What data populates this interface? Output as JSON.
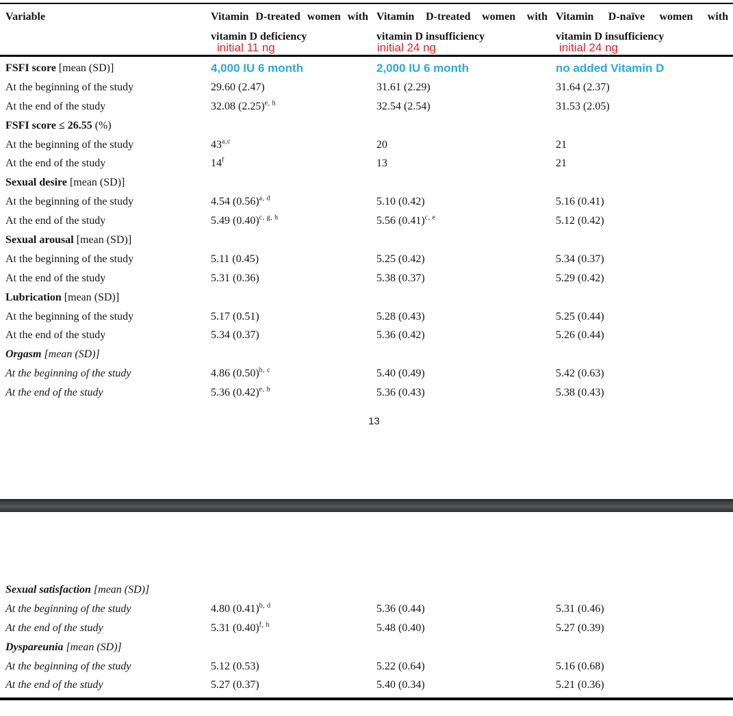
{
  "colors": {
    "annotation_red": "#e82222",
    "annotation_cyan": "#29a9e1",
    "page_separator_bar": "#44484b",
    "table_rule": "#000000"
  },
  "page_number": "13",
  "header": {
    "variable_label": "Variable",
    "columns": [
      {
        "line1": "Vitamin D-treated women with",
        "line2": "vitamin D deficiency",
        "initial_note": "initial 11 ng",
        "dose_note": "4,000 IU 6 month"
      },
      {
        "line1": "Vitamin D-treated women with",
        "line2": "vitamin D insufficiency",
        "initial_note": "initial 24 ng",
        "dose_note": "2,000 IU 6 month"
      },
      {
        "line1": "Vitamin D-naïve women with",
        "line2": "vitamin D insufficiency",
        "initial_note": "initial 24 ng",
        "dose_note": "no added Vitamin D"
      }
    ]
  },
  "table": {
    "sections": [
      {
        "title_bold": "FSFI score",
        "title_rest": " [mean (SD)]",
        "italic": false,
        "rows": [
          {
            "label": "At the beginning of the study",
            "cells": [
              {
                "v": "29.60 (2.47)",
                "s": ""
              },
              {
                "v": "31.61 (2.29)",
                "s": ""
              },
              {
                "v": "31.64 (2.37)",
                "s": ""
              }
            ]
          },
          {
            "label": "At the end of the study",
            "cells": [
              {
                "v": "32.08 (2.25)",
                "s": "e, h"
              },
              {
                "v": "32.54 (2.54)",
                "s": ""
              },
              {
                "v": "31.53 (2.05)",
                "s": ""
              }
            ]
          }
        ]
      },
      {
        "title_bold": "FSFI score ≤ 26.55",
        "title_rest": " (%)",
        "italic": false,
        "rows": [
          {
            "label": "At the beginning of the study",
            "cells": [
              {
                "v": "43",
                "s": "a,c"
              },
              {
                "v": "20",
                "s": ""
              },
              {
                "v": "21",
                "s": ""
              }
            ]
          },
          {
            "label": "At the end of the study",
            "cells": [
              {
                "v": "14",
                "s": "f"
              },
              {
                "v": "13",
                "s": ""
              },
              {
                "v": "21",
                "s": ""
              }
            ]
          }
        ]
      },
      {
        "title_bold": "Sexual desire",
        "title_rest": " [mean (SD)]",
        "italic": false,
        "rows": [
          {
            "label": "At the beginning of the study",
            "cells": [
              {
                "v": "4.54 (0.56)",
                "s": "a, d"
              },
              {
                "v": "5.10 (0.42)",
                "s": ""
              },
              {
                "v": "5.16 (0.41)",
                "s": ""
              }
            ]
          },
          {
            "label": "At the end of the study",
            "cells": [
              {
                "v": "5.49 (0.40)",
                "s": "c, g, h"
              },
              {
                "v": "5.56 (0.41)",
                "s": "c, e"
              },
              {
                "v": "5.12 (0.42)",
                "s": ""
              }
            ]
          }
        ]
      },
      {
        "title_bold": "Sexual arousal",
        "title_rest": " [mean (SD)]",
        "italic": false,
        "rows": [
          {
            "label": "At the beginning of the study",
            "cells": [
              {
                "v": "5.11 (0.45)",
                "s": ""
              },
              {
                "v": "5.25 (0.42)",
                "s": ""
              },
              {
                "v": "5.34 (0.37)",
                "s": ""
              }
            ]
          },
          {
            "label": "At the end of the study",
            "cells": [
              {
                "v": "5.31 (0.36)",
                "s": ""
              },
              {
                "v": "5.38 (0.37)",
                "s": ""
              },
              {
                "v": "5.29 (0.42)",
                "s": ""
              }
            ]
          }
        ]
      },
      {
        "title_bold": "Lubrication",
        "title_rest": " [mean (SD)]",
        "italic": false,
        "rows": [
          {
            "label": "At the beginning of the study",
            "cells": [
              {
                "v": "5.17 (0.51)",
                "s": ""
              },
              {
                "v": "5.28 (0.43)",
                "s": ""
              },
              {
                "v": "5.25 (0.44)",
                "s": ""
              }
            ]
          },
          {
            "label": "At the end of the study",
            "cells": [
              {
                "v": "5.34 (0.37)",
                "s": ""
              },
              {
                "v": "5.36 (0.42)",
                "s": ""
              },
              {
                "v": "5.26 (0.44)",
                "s": ""
              }
            ]
          }
        ]
      },
      {
        "title_bold": "Orgasm",
        "title_rest": " [mean (SD)]",
        "italic": true,
        "rows": [
          {
            "label": "At the beginning of the study",
            "cells": [
              {
                "v": "4.86 (0.50)",
                "s": "b, c"
              },
              {
                "v": "5.40 (0.49)",
                "s": ""
              },
              {
                "v": "5.42 (0.63)",
                "s": ""
              }
            ]
          },
          {
            "label": "At the end of the study",
            "cells": [
              {
                "v": "5.36 (0.42)",
                "s": "e, h"
              },
              {
                "v": "5.36 (0.43)",
                "s": ""
              },
              {
                "v": "5.38 (0.43)",
                "s": ""
              }
            ]
          }
        ]
      },
      {
        "title_bold": "Sexual satisfaction",
        "title_rest": " [mean (SD)]",
        "italic": true,
        "rows": [
          {
            "label": "At the beginning of the study",
            "cells": [
              {
                "v": "4.80 (0.41)",
                "s": "b, d"
              },
              {
                "v": "5.36 (0.44)",
                "s": ""
              },
              {
                "v": "5.31 (0.46)",
                "s": ""
              }
            ]
          },
          {
            "label": "At the end of the study",
            "cells": [
              {
                "v": "5.31 (0.40)",
                "s": "f, h"
              },
              {
                "v": "5.48 (0.40)",
                "s": ""
              },
              {
                "v": "5.27 (0.39)",
                "s": ""
              }
            ]
          }
        ]
      },
      {
        "title_bold": "Dyspareunia",
        "title_rest": " [mean (SD)]",
        "italic": true,
        "rows": [
          {
            "label": "At the beginning of the study",
            "cells": [
              {
                "v": "5.12 (0.53)",
                "s": ""
              },
              {
                "v": "5.22 (0.64)",
                "s": ""
              },
              {
                "v": "5.16 (0.68)",
                "s": ""
              }
            ]
          },
          {
            "label": "At the end of the study",
            "cells": [
              {
                "v": "5.27 (0.37)",
                "s": ""
              },
              {
                "v": "5.40 (0.34)",
                "s": ""
              },
              {
                "v": "5.21 (0.36)",
                "s": ""
              }
            ]
          }
        ]
      }
    ]
  }
}
